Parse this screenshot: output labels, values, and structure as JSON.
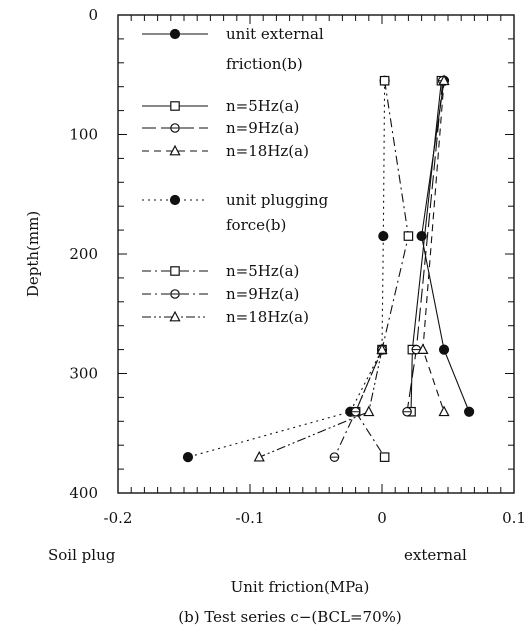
{
  "chart_data": {
    "type": "line",
    "xlabel": "Unit friction(MPa)",
    "ylabel": "Depth(mm)",
    "x_ticks": [
      "-0.2",
      "-0.1",
      "0",
      "0.1"
    ],
    "y_ticks": [
      "0",
      "100",
      "200",
      "300",
      "400"
    ],
    "xlim": [
      -0.2,
      0.1
    ],
    "ylim": [
      0,
      400
    ],
    "y_inverted": true,
    "annotations": {
      "left_label": "Soil plug",
      "right_label": "external",
      "caption": "(b) Test series c−(BCL=70%)"
    },
    "series": [
      {
        "name": "unit external friction(b)",
        "marker": "circle-filled",
        "line": "solid",
        "points": [
          [
            0.047,
            55
          ],
          [
            0.03,
            185
          ],
          [
            0.047,
            280
          ],
          [
            0.066,
            332
          ]
        ]
      },
      {
        "name": "n=5Hz(a)",
        "marker": "square-open",
        "line": "solid",
        "points": [
          [
            0.045,
            55
          ],
          [
            0.023,
            280
          ],
          [
            0.022,
            332
          ]
        ]
      },
      {
        "name": "n=9Hz(a)",
        "marker": "diamond-open",
        "line": "long-dash",
        "points": [
          [
            0.046,
            55
          ],
          [
            0.026,
            280
          ],
          [
            0.019,
            332
          ]
        ]
      },
      {
        "name": "n=18Hz(a)",
        "marker": "triangle-open",
        "line": "dash",
        "points": [
          [
            0.047,
            55
          ],
          [
            0.031,
            280
          ],
          [
            0.047,
            332
          ]
        ]
      },
      {
        "name": "unit plugging force(b)",
        "marker": "circle-filled",
        "line": "dotted",
        "points": [
          [
            0.002,
            55
          ],
          [
            0.001,
            185
          ],
          [
            0.0,
            280
          ],
          [
            -0.024,
            332
          ],
          [
            -0.147,
            370
          ]
        ]
      },
      {
        "name": "n=5Hz(a)",
        "marker": "square-open",
        "line": "dash-dot",
        "points": [
          [
            0.002,
            55
          ],
          [
            0.02,
            185
          ],
          [
            0.0,
            280
          ],
          [
            -0.02,
            332
          ],
          [
            0.002,
            370
          ]
        ]
      },
      {
        "name": "n=9Hz(a)",
        "marker": "diamond-open",
        "line": "dash-dot",
        "points": [
          [
            0.0,
            280
          ],
          [
            -0.02,
            332
          ],
          [
            -0.036,
            370
          ]
        ]
      },
      {
        "name": "n=18Hz(a)",
        "marker": "triangle-open",
        "line": "dash-dot-dot",
        "points": [
          [
            0.0,
            280
          ],
          [
            -0.01,
            332
          ],
          [
            -0.093,
            370
          ]
        ]
      }
    ],
    "legend": [
      {
        "label_lines": [
          "unit external",
          "friction(b)"
        ],
        "marker": "circle-filled",
        "line": "solid"
      },
      {
        "label_lines": [
          "n=5Hz(a)"
        ],
        "marker": "square-open",
        "line": "solid"
      },
      {
        "label_lines": [
          "n=9Hz(a)"
        ],
        "marker": "diamond-open",
        "line": "long-dash"
      },
      {
        "label_lines": [
          "n=18Hz(a)"
        ],
        "marker": "triangle-open",
        "line": "dash"
      },
      {
        "label_lines": [
          "unit plugging",
          "force(b)"
        ],
        "marker": "circle-filled",
        "line": "dotted"
      },
      {
        "label_lines": [
          "n=5Hz(a)"
        ],
        "marker": "square-open",
        "line": "dash-dot"
      },
      {
        "label_lines": [
          "n=9Hz(a)"
        ],
        "marker": "diamond-open",
        "line": "dash-dot"
      },
      {
        "label_lines": [
          "n=18Hz(a)"
        ],
        "marker": "triangle-open",
        "line": "dash-dot-dot"
      }
    ],
    "legend_placement": "top-left, inside plot",
    "grid": false
  }
}
